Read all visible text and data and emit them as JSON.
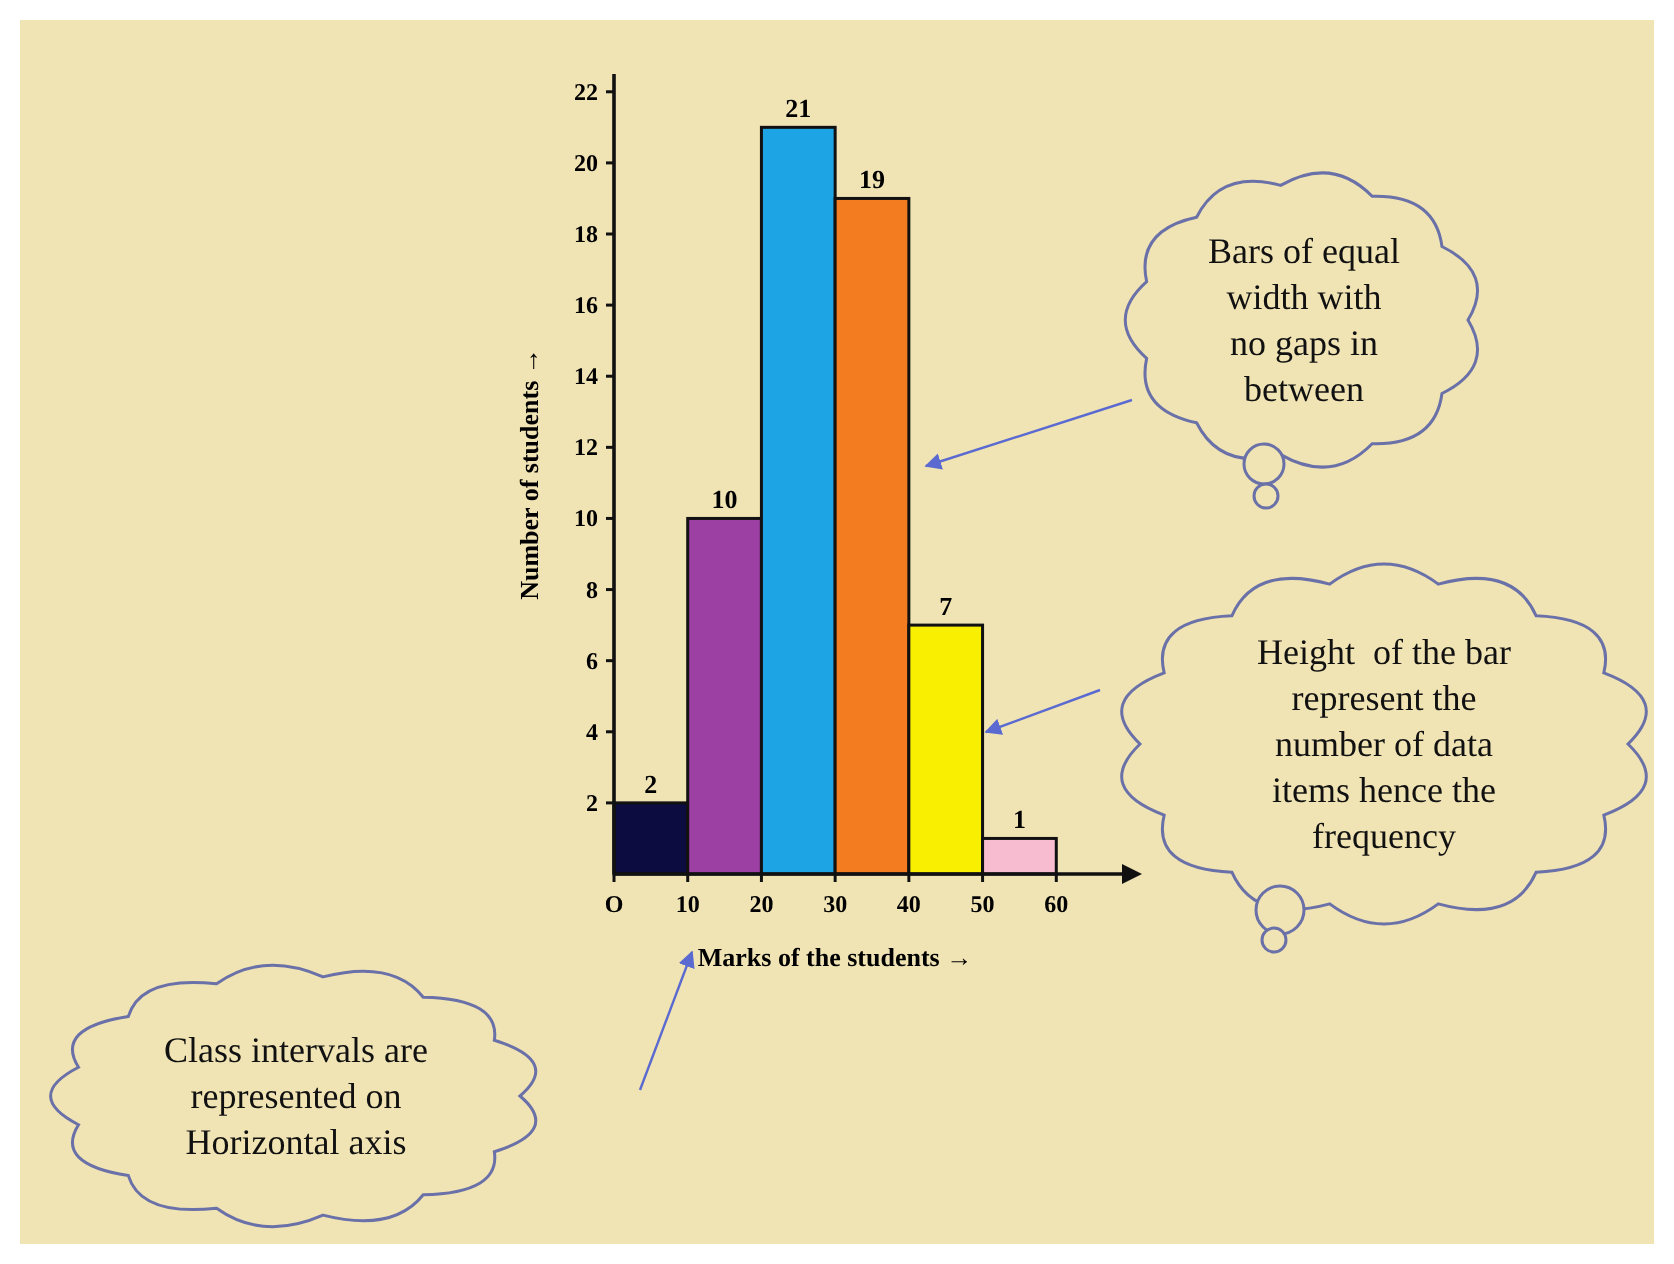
{
  "chart_data": {
    "type": "histogram",
    "bins": [
      0,
      10,
      20,
      30,
      40,
      50,
      60
    ],
    "values": [
      2,
      10,
      21,
      19,
      7,
      1
    ],
    "colors": [
      "#0c0c40",
      "#9c40a4",
      "#1ca4e4",
      "#f47c20",
      "#f8f000",
      "#f8bcd0"
    ],
    "xlim": [
      0,
      70
    ],
    "ylim": [
      0,
      22.5
    ],
    "xticks": [
      {
        "value": 0,
        "label": "O"
      },
      10,
      20,
      30,
      40,
      50,
      60
    ],
    "yticks": [
      2,
      4,
      6,
      8,
      10,
      12,
      14,
      16,
      18,
      20,
      22
    ],
    "xlabel": "Marks of the students →",
    "ylabel": "Number of students →",
    "data_labels": true,
    "grid": false,
    "annotations": [
      "Bars of equal\nwidth with\nno gaps in\nbetween",
      "Height  of the bar\nrepresent the\nnumber of data\nitems hence the\nfrequency",
      "Class intervals are\nrepresented on\nHorizontal axis"
    ]
  }
}
